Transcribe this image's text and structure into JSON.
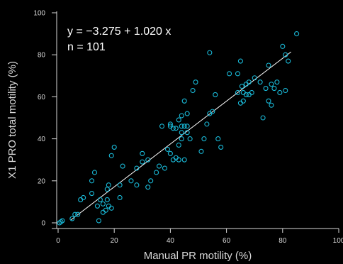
{
  "chart_data": {
    "type": "scatter",
    "xlabel": "Manual PR motility (%)",
    "ylabel": "X1 PRO total motility (%)",
    "xlim": [
      0,
      100
    ],
    "ylim": [
      0,
      100
    ],
    "x_ticks": [
      "0",
      "20",
      "40",
      "60",
      "80",
      "100"
    ],
    "y_ticks": [
      "0",
      "20",
      "40",
      "60",
      "80",
      "100"
    ],
    "annotations": [
      "y = −3.275 + 1.020 x",
      "n = 101"
    ],
    "fit_line": {
      "intercept": -3.275,
      "slope": 1.02,
      "x_range": [
        4.5,
        83
      ]
    },
    "grid": false,
    "colors": {
      "background": "#000000",
      "points": "#19b8d6",
      "fit_line": "#ffffff",
      "axes": "#d9d9d9"
    },
    "points": [
      [
        0.5,
        0
      ],
      [
        1,
        0.5
      ],
      [
        1.5,
        1
      ],
      [
        5,
        2
      ],
      [
        6,
        4
      ],
      [
        7,
        4
      ],
      [
        8,
        11
      ],
      [
        9,
        12
      ],
      [
        12,
        14
      ],
      [
        12,
        20
      ],
      [
        13,
        24
      ],
      [
        14,
        8
      ],
      [
        14.5,
        1
      ],
      [
        15,
        11
      ],
      [
        16,
        5
      ],
      [
        16,
        9
      ],
      [
        17,
        6
      ],
      [
        17.5,
        11
      ],
      [
        17.5,
        16
      ],
      [
        18,
        18
      ],
      [
        18,
        8
      ],
      [
        19,
        7
      ],
      [
        19,
        32
      ],
      [
        20,
        36
      ],
      [
        22,
        18
      ],
      [
        22,
        12
      ],
      [
        23,
        27
      ],
      [
        26,
        20
      ],
      [
        28,
        18
      ],
      [
        28,
        26
      ],
      [
        30,
        29
      ],
      [
        30,
        33
      ],
      [
        32,
        17
      ],
      [
        32,
        30
      ],
      [
        33,
        20
      ],
      [
        35,
        24
      ],
      [
        36,
        27
      ],
      [
        37,
        46
      ],
      [
        38,
        26
      ],
      [
        39,
        35
      ],
      [
        40,
        33
      ],
      [
        40,
        47
      ],
      [
        40,
        46
      ],
      [
        41,
        45
      ],
      [
        41,
        30
      ],
      [
        42,
        45
      ],
      [
        42,
        31
      ],
      [
        43,
        49
      ],
      [
        43,
        30
      ],
      [
        43,
        37
      ],
      [
        44,
        43
      ],
      [
        44,
        51
      ],
      [
        44,
        46
      ],
      [
        45,
        30
      ],
      [
        45,
        46
      ],
      [
        45,
        58
      ],
      [
        46,
        43
      ],
      [
        46,
        46
      ],
      [
        46,
        52
      ],
      [
        47,
        40
      ],
      [
        48,
        63
      ],
      [
        49,
        67
      ],
      [
        51,
        34
      ],
      [
        52,
        40
      ],
      [
        53,
        47
      ],
      [
        54,
        81
      ],
      [
        54,
        52
      ],
      [
        55,
        53
      ],
      [
        56,
        61
      ],
      [
        57,
        40
      ],
      [
        58,
        36
      ],
      [
        64,
        71
      ],
      [
        64,
        62
      ],
      [
        65,
        57
      ],
      [
        65,
        77
      ],
      [
        65.5,
        65
      ],
      [
        66,
        62
      ],
      [
        66,
        58
      ],
      [
        67,
        66
      ],
      [
        67,
        61
      ],
      [
        68,
        67
      ],
      [
        68,
        61
      ],
      [
        69,
        62
      ],
      [
        70,
        69
      ],
      [
        72,
        67
      ],
      [
        73,
        50
      ],
      [
        74,
        64
      ],
      [
        75,
        75
      ],
      [
        75,
        58
      ],
      [
        76,
        56
      ],
      [
        76,
        66
      ],
      [
        77,
        64
      ],
      [
        78,
        67
      ],
      [
        79,
        62
      ],
      [
        80,
        84
      ],
      [
        81,
        80
      ],
      [
        81,
        63
      ],
      [
        82,
        77
      ],
      [
        85,
        90
      ],
      [
        44,
        40
      ],
      [
        61,
        71
      ]
    ]
  }
}
